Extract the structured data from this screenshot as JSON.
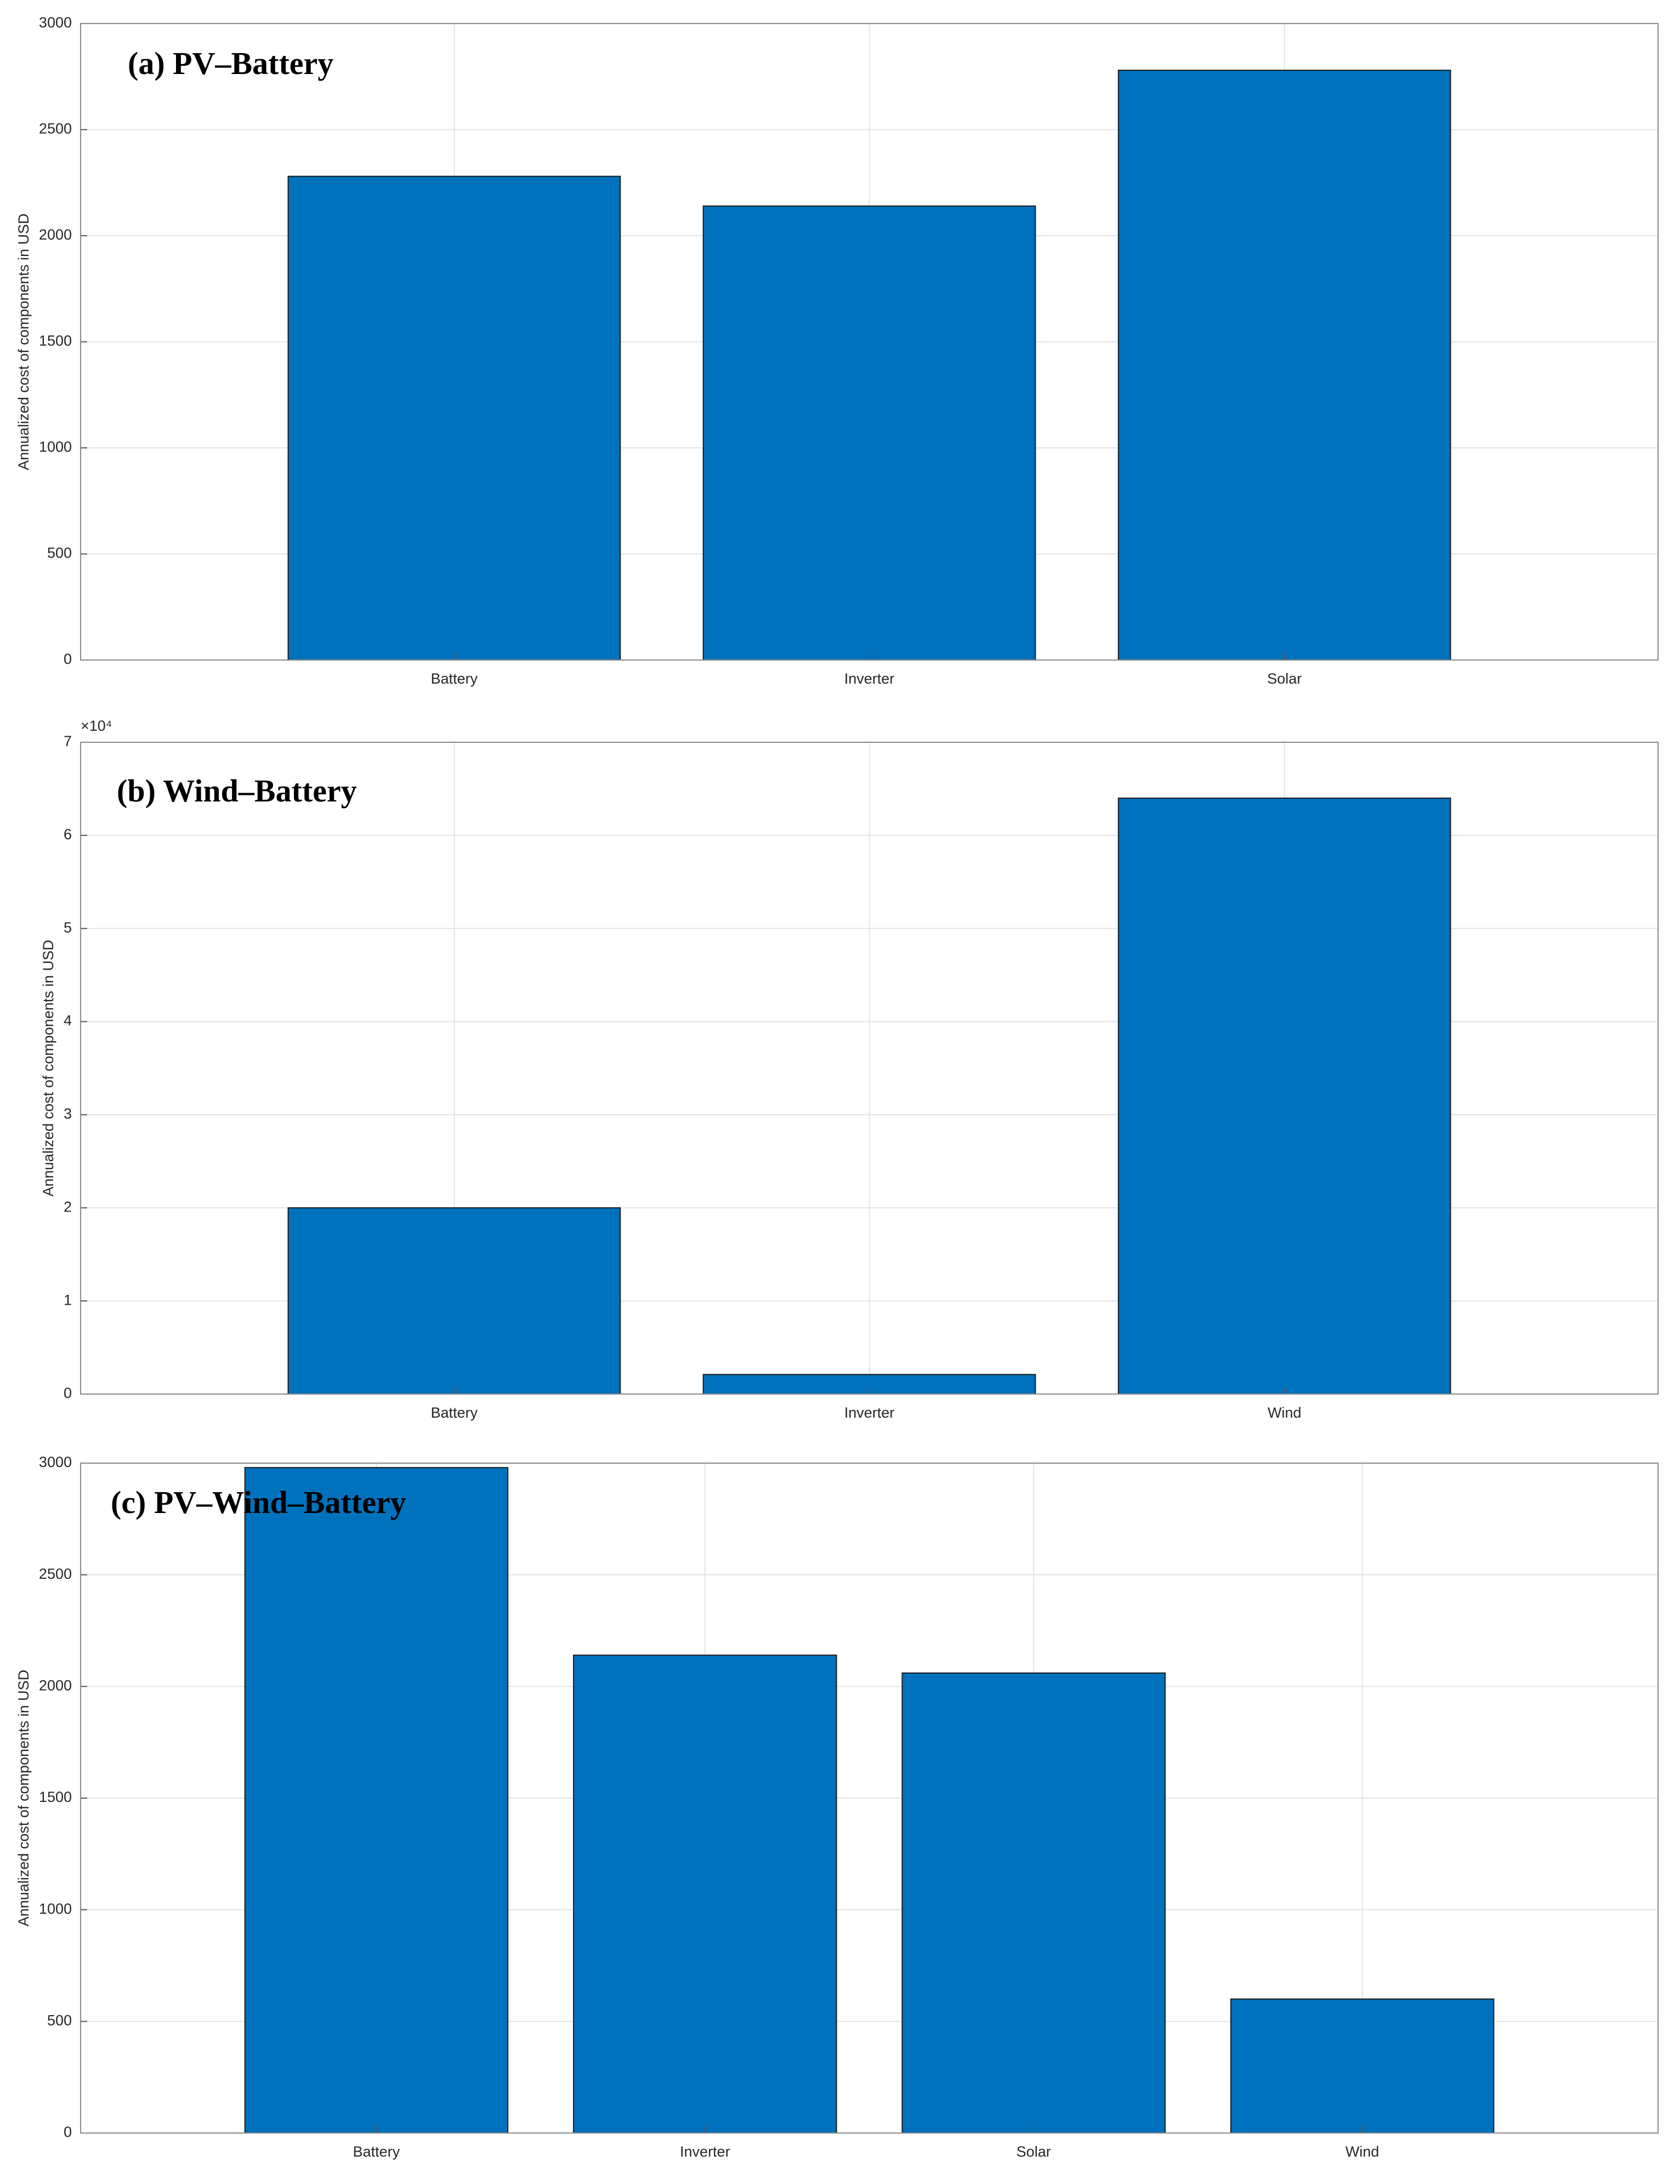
{
  "chart_data": [
    {
      "type": "bar",
      "title": "(a) PV–Battery",
      "ylabel": "Annualized cost of components in USD",
      "categories": [
        "Battery",
        "Inverter",
        "Solar"
      ],
      "values": [
        2280,
        2140,
        2780
      ],
      "color": "#0072bd",
      "ylim": [
        0,
        3000
      ],
      "yticks": [
        0,
        500,
        1000,
        1500,
        2000,
        2500,
        3000
      ],
      "grid": true
    },
    {
      "type": "bar",
      "title": "(b) Wind–Battery",
      "ylabel": "Annualized cost of components in USD",
      "y_exponent_label": "×10⁴",
      "categories": [
        "Battery",
        "Inverter",
        "Wind"
      ],
      "values": [
        20000,
        2100,
        64000
      ],
      "color": "#0072bd",
      "ylim": [
        0,
        70000
      ],
      "yticks": [
        {
          "value": 0,
          "label": "0"
        },
        {
          "value": 10000,
          "label": "1"
        },
        {
          "value": 20000,
          "label": "2"
        },
        {
          "value": 30000,
          "label": "3"
        },
        {
          "value": 40000,
          "label": "4"
        },
        {
          "value": 50000,
          "label": "5"
        },
        {
          "value": 60000,
          "label": "6"
        },
        {
          "value": 70000,
          "label": "7"
        }
      ],
      "grid": true
    },
    {
      "type": "bar",
      "title": "(c) PV–Wind–Battery",
      "ylabel": "Annualized cost of components in USD",
      "categories": [
        "Battery",
        "Inverter",
        "Solar",
        "Wind"
      ],
      "values": [
        2980,
        2140,
        2060,
        600
      ],
      "color": "#0072bd",
      "ylim": [
        0,
        3000
      ],
      "yticks": [
        0,
        500,
        1000,
        1500,
        2000,
        2500,
        3000
      ],
      "grid": true
    }
  ]
}
